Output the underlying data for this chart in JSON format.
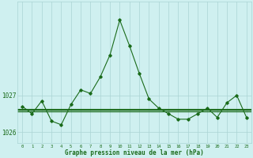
{
  "hours": [
    0,
    1,
    2,
    3,
    4,
    5,
    6,
    7,
    8,
    9,
    10,
    11,
    12,
    13,
    14,
    15,
    16,
    17,
    18,
    19,
    20,
    21,
    22,
    23
  ],
  "pressure": [
    1026.7,
    1026.5,
    1026.85,
    1026.3,
    1026.2,
    1026.75,
    1027.15,
    1027.05,
    1027.5,
    1028.1,
    1029.05,
    1028.35,
    1027.6,
    1026.9,
    1026.65,
    1026.5,
    1026.35,
    1026.35,
    1026.5,
    1026.65,
    1026.4,
    1026.8,
    1027.0,
    1026.4
  ],
  "ref_lines": [
    1026.63,
    1026.57,
    1026.6
  ],
  "ylim_min": 1025.7,
  "ylim_max": 1029.55,
  "yticks": [
    1026,
    1027
  ],
  "xlabel": "Graphe pression niveau de la mer (hPa)",
  "line_color": "#1a6b1a",
  "bg_color": "#cff0f0",
  "grid_color": "#aad4d4",
  "title_color": "#1a6b1a",
  "marker": "D",
  "marker_size": 1.8,
  "linewidth": 0.8
}
